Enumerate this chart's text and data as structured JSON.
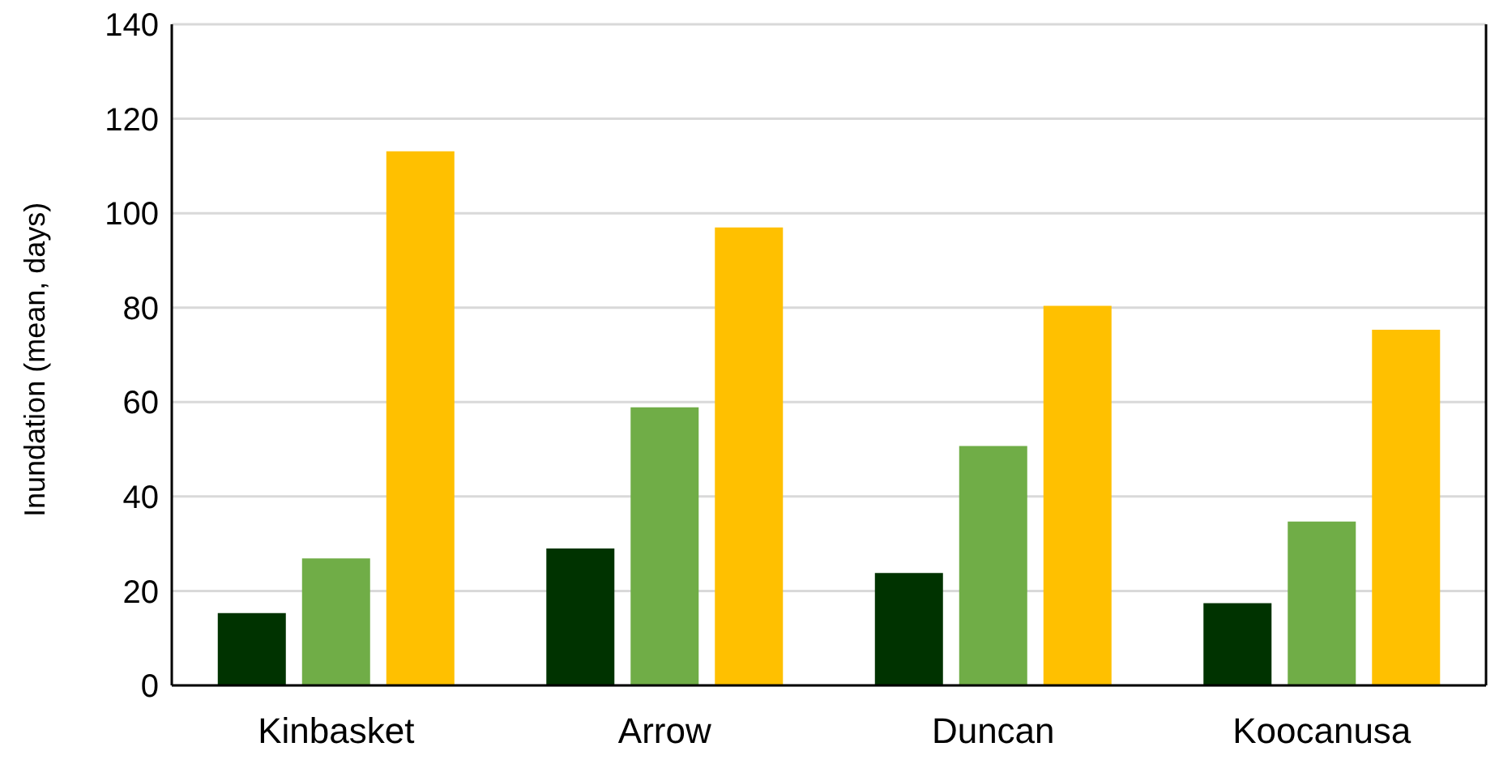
{
  "chart_data": {
    "type": "bar",
    "ylabel": "Inundation (mean, days)",
    "categories": [
      "Kinbasket",
      "Arrow",
      "Duncan",
      "Koocanusa"
    ],
    "series": [
      {
        "color": "#003300",
        "values": [
          15.3,
          29,
          23.8,
          17.4
        ]
      },
      {
        "color": "#70ad47",
        "values": [
          26.9,
          58.9,
          50.7,
          34.7
        ]
      },
      {
        "color": "#ffc000",
        "values": [
          113.1,
          97,
          80.4,
          75.3
        ]
      }
    ],
    "ylim": [
      0,
      140
    ],
    "yticks": [
      0,
      20,
      40,
      60,
      80,
      100,
      120,
      140
    ],
    "grid": "y",
    "legend": false
  }
}
